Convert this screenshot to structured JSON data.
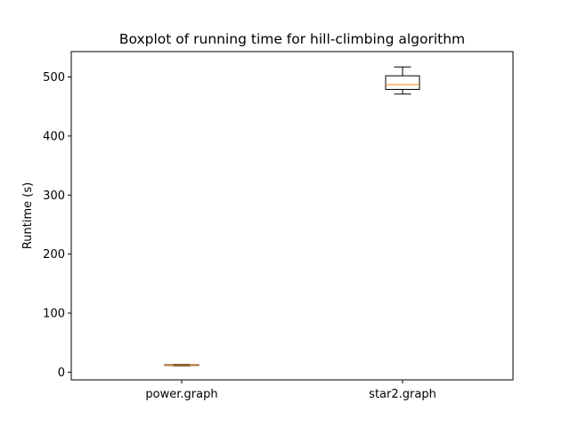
{
  "chart_data": {
    "type": "boxplot",
    "title": "Boxplot of running time for hill-climbing algorithm",
    "xlabel": "",
    "ylabel": "Runtime (s)",
    "categories": [
      "power.graph",
      "star2.graph"
    ],
    "boxes": [
      {
        "category": "power.graph",
        "whisker_low": 11,
        "q1": 11.5,
        "median": 12,
        "q3": 12.5,
        "whisker_high": 13
      },
      {
        "category": "star2.graph",
        "whisker_low": 471,
        "q1": 479,
        "median": 487,
        "q3": 502,
        "whisker_high": 517
      }
    ],
    "yticks": [
      0,
      100,
      200,
      300,
      400,
      500
    ],
    "ylim": [
      -13,
      543
    ],
    "grid": false,
    "legend": "none",
    "colors": {
      "box": "#000000",
      "median": "#ff7f0e",
      "axes": "#000000",
      "background": "#ffffff"
    }
  }
}
